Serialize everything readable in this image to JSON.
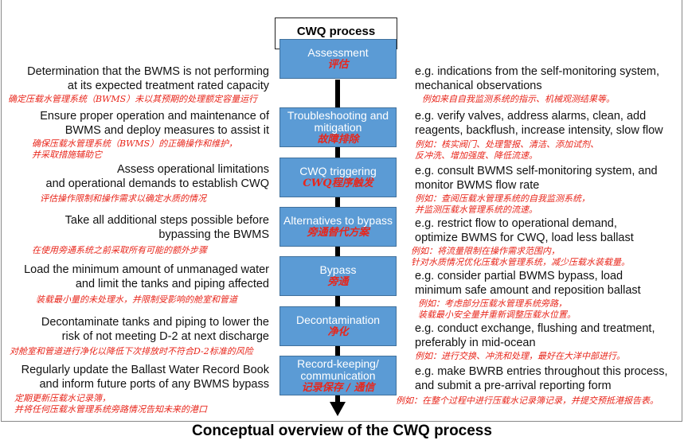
{
  "title": "CWQ process",
  "caption": "Conceptual overview of the CWQ process",
  "steps": [
    {
      "label": "Assessment",
      "zh": "评估",
      "left": [
        "Determination that the BWMS is not performing",
        "at its expected treatment rated capacity"
      ],
      "left_zh": [
        "确定压载水管理系统（BWMS）未以其预期的处理额定容量运行"
      ],
      "right": [
        "e.g. indications from the self-monitoring system,",
        "mechanical observations"
      ],
      "right_zh": [
        "例如来自自我监测系统的指示、机械观测结果等。"
      ]
    },
    {
      "label": "Troubleshooting and mitigation",
      "zh": "故障排除",
      "left": [
        "Ensure proper operation and maintenance of",
        "BWMS and deploy measures to assist it"
      ],
      "left_zh": [
        "确保压载水管理系统（BWMS）的正确操作和维护，",
        "并采取措施辅助它"
      ],
      "right": [
        "e.g. verify valves, address alarms, clean, add",
        "reagents, backflush, increase intensity, slow flow"
      ],
      "right_zh": [
        "例如：核实阀门、处理警报、清洁、添加试剂、",
        "反冲洗、增加强度、降低流速。"
      ]
    },
    {
      "label": "CWQ triggering",
      "zh": "CWQ程序触发",
      "left": [
        "Assess operational limitations",
        "and operational demands to establish CWQ"
      ],
      "left_zh": [
        "评估操作限制和操作需求以确定水质的情况"
      ],
      "right": [
        "e.g. consult BWMS self-monitoring system, and",
        "monitor BWMS flow rate"
      ],
      "right_zh": [
        "例如：查阅压载水管理系统的自我监测系统，",
        "并监测压载水管理系统的流速。"
      ]
    },
    {
      "label": "Alternatives to bypass",
      "zh": "旁通替代方案",
      "left": [
        "Take all additional steps possible before",
        "bypassing the BWMS"
      ],
      "left_zh": [
        "在使用旁通系统之前采取所有可能的额外步骤"
      ],
      "right": [
        "e.g. restrict flow to operational demand,",
        "optimize BWMS for CWQ, load less ballast"
      ],
      "right_zh": [
        "例如：将流量限制在操作需求范围内，",
        "针对水质情况优化压载水管理系统，减少压载水装载量。"
      ]
    },
    {
      "label": "Bypass",
      "zh": "旁通",
      "left": [
        "Load the minimum amount of unmanaged water",
        "and limit the tanks and piping affected"
      ],
      "left_zh": [
        "装载最小量的未处理水，并限制受影响的舱室和管道"
      ],
      "right": [
        "e.g. consider partial BWMS bypass, load",
        "minimum safe amount and reposition ballast"
      ],
      "right_zh": [
        "例如：考虑部分压载水管理系统旁路，",
        "装载最小安全量并重新调整压载水位置。"
      ]
    },
    {
      "label": "Decontamination",
      "zh": "净化",
      "left": [
        "Decontaminate tanks and piping to lower the",
        "risk of not meeting D-2 at next discharge"
      ],
      "left_zh": [
        "对舱室和管道进行净化以降低下次排放时不符合D-2标准的风险"
      ],
      "right": [
        "e.g. conduct exchange, flushing and treatment,",
        "preferably in mid-ocean"
      ],
      "right_zh": [
        "例如：进行交换、冲洗和处理，最好在大洋中部进行。"
      ]
    },
    {
      "label": "Record-keeping/ communication",
      "zh": "记录保存 / 通信",
      "left": [
        "Regularly update the Ballast Water Record Book",
        "and inform future ports of any BWMS bypass"
      ],
      "left_zh": [
        "定期更新压载水记录簿，",
        "并将任何压载水管理系统旁路情况告知未来的港口"
      ],
      "right": [
        "e.g. make BWRB entries throughout this process,",
        "and submit a pre-arrival reporting form"
      ],
      "right_zh": [
        "例如：在整个过程中进行压载水记录簿记录，并提交预抵港报告表。"
      ]
    }
  ]
}
